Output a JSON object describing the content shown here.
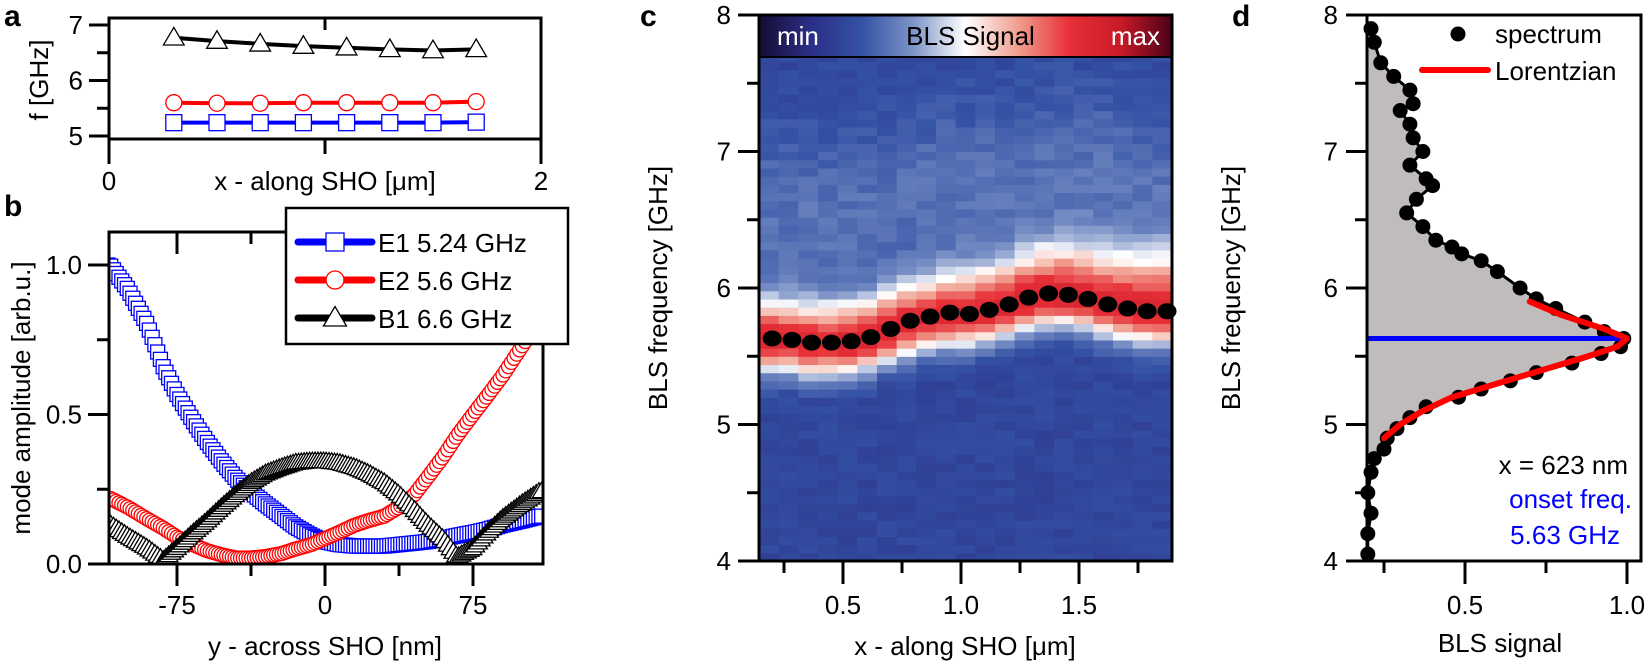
{
  "figure": {
    "panel_labels": {
      "a": "a",
      "b": "b",
      "c": "c",
      "d": "d"
    }
  },
  "chart_data": [
    {
      "panel": "a",
      "type": "line",
      "xlabel": "x - along SHO [μm]",
      "ylabel": "f [GHz]",
      "xlim": [
        0,
        2
      ],
      "ylim": [
        4.8,
        7.2
      ],
      "xtick_labels": [
        "0",
        "2"
      ],
      "ytick_labels": [
        "5",
        "6",
        "7"
      ],
      "x": [
        0.3,
        0.5,
        0.7,
        0.9,
        1.1,
        1.3,
        1.5,
        1.7
      ],
      "series": [
        {
          "marker": "triangle",
          "color": "#000000",
          "values": [
            6.77,
            6.71,
            6.66,
            6.62,
            6.59,
            6.56,
            6.54,
            6.56
          ]
        },
        {
          "marker": "circle",
          "color": "#ff0000",
          "values": [
            5.6,
            5.59,
            5.59,
            5.6,
            5.6,
            5.6,
            5.6,
            5.62
          ]
        },
        {
          "marker": "square",
          "color": "#0000ff",
          "values": [
            5.24,
            5.24,
            5.24,
            5.24,
            5.24,
            5.24,
            5.24,
            5.25
          ]
        }
      ]
    },
    {
      "panel": "b",
      "type": "line",
      "xlabel": "y - across SHO [nm]",
      "ylabel": "mode amplitude [arb.u.]",
      "xlim": [
        -110,
        110
      ],
      "ylim": [
        0,
        1.1
      ],
      "xtick_labels": [
        "-75",
        "0",
        "75"
      ],
      "ytick_labels": [
        "0.0",
        "0.5",
        "1.0"
      ],
      "legend": "top-right",
      "x": [
        -109,
        -100,
        -90,
        -82,
        -75,
        -67,
        -60,
        -52,
        -45,
        -37.5,
        -30,
        -22,
        -15,
        -7,
        0,
        7,
        15,
        22,
        30,
        37.5,
        45,
        52,
        60,
        67,
        75,
        82,
        90,
        100,
        109
      ],
      "series": [
        {
          "name": "E1 5.24 GHz",
          "marker": "square",
          "color": "#0000ff",
          "values": [
            1.0,
            0.92,
            0.8,
            0.66,
            0.567,
            0.48,
            0.41,
            0.34,
            0.285,
            0.24,
            0.2,
            0.16,
            0.125,
            0.095,
            0.075,
            0.065,
            0.06,
            0.06,
            0.06,
            0.065,
            0.07,
            0.075,
            0.085,
            0.095,
            0.105,
            0.115,
            0.13,
            0.145,
            0.16
          ]
        },
        {
          "name": "E2 5.6 GHz",
          "marker": "circle",
          "color": "#ff0000",
          "values": [
            0.22,
            0.19,
            0.15,
            0.12,
            0.09,
            0.065,
            0.045,
            0.03,
            0.02,
            0.02,
            0.025,
            0.035,
            0.05,
            0.065,
            0.085,
            0.105,
            0.13,
            0.145,
            0.16,
            0.19,
            0.23,
            0.29,
            0.36,
            0.43,
            0.5,
            0.56,
            0.63,
            0.73,
            0.82
          ]
        },
        {
          "name": "B1 6.6 GHz",
          "marker": "triangle",
          "color": "#000000",
          "values": [
            0.12,
            0.08,
            0.04,
            0.0,
            0.04,
            0.09,
            0.13,
            0.18,
            0.22,
            0.26,
            0.29,
            0.31,
            0.325,
            0.33,
            0.33,
            0.325,
            0.31,
            0.29,
            0.26,
            0.22,
            0.17,
            0.12,
            0.07,
            0.01,
            0.04,
            0.09,
            0.14,
            0.19,
            0.23
          ]
        }
      ]
    },
    {
      "panel": "c",
      "type": "heatmap",
      "xlabel": "x - along SHO [μm]",
      "ylabel": "BLS frequency [GHz]",
      "xlim": [
        0.15,
        1.88
      ],
      "ylim": [
        4,
        8
      ],
      "xtick_labels": [
        "0.5",
        "1.0",
        "1.5"
      ],
      "ytick_labels": [
        "4",
        "5",
        "6",
        "7",
        "8"
      ],
      "colorbar": {
        "min_label": "min",
        "title": "BLS Signal",
        "max_label": "max",
        "colors": [
          "#160c35",
          "#2b2f86",
          "#3452a5",
          "#7f95c8",
          "#ffffff",
          "#f0a090",
          "#e83038",
          "#c81a28",
          "#4a0018"
        ]
      },
      "peak_markers": {
        "color": "#000000",
        "x": [
          0.2,
          0.284,
          0.367,
          0.451,
          0.535,
          0.618,
          0.702,
          0.785,
          0.869,
          0.953,
          1.036,
          1.12,
          1.204,
          1.287,
          1.371,
          1.455,
          1.538,
          1.622,
          1.706,
          1.789,
          1.873
        ],
        "y": [
          5.63,
          5.62,
          5.6,
          5.6,
          5.61,
          5.64,
          5.7,
          5.76,
          5.79,
          5.82,
          5.81,
          5.84,
          5.88,
          5.93,
          5.96,
          5.95,
          5.92,
          5.88,
          5.85,
          5.83,
          5.83
        ]
      }
    },
    {
      "panel": "d",
      "type": "scatter",
      "xlabel": "BLS signal",
      "ylabel": "BLS frequency [GHz]",
      "xlim": [
        0.2,
        1.04
      ],
      "ylim": [
        4,
        8
      ],
      "xtick_labels": [
        "0.5",
        "1.0"
      ],
      "ytick_labels": [
        "4",
        "5",
        "6",
        "7",
        "8"
      ],
      "legend": "top-right",
      "spectrum": {
        "name": "spectrum",
        "color": "#000000",
        "fill": "#c0bcbc",
        "frequency": [
          7.9,
          7.8,
          7.65,
          7.55,
          7.45,
          7.35,
          7.3,
          7.2,
          7.1,
          7.0,
          6.9,
          6.8,
          6.75,
          6.65,
          6.55,
          6.45,
          6.35,
          6.3,
          6.25,
          6.2,
          6.12,
          6.0,
          5.92,
          5.85,
          5.75,
          5.68,
          5.63,
          5.57,
          5.52,
          5.45,
          5.38,
          5.32,
          5.26,
          5.2,
          5.13,
          5.05,
          4.97,
          4.9,
          4.82,
          4.75,
          4.65,
          4.5,
          4.35,
          4.2,
          4.05
        ],
        "signal": [
          0.21,
          0.22,
          0.24,
          0.28,
          0.33,
          0.34,
          0.3,
          0.33,
          0.34,
          0.37,
          0.33,
          0.38,
          0.4,
          0.35,
          0.32,
          0.37,
          0.41,
          0.46,
          0.49,
          0.55,
          0.6,
          0.67,
          0.72,
          0.78,
          0.87,
          0.93,
          0.99,
          0.98,
          0.92,
          0.83,
          0.72,
          0.64,
          0.55,
          0.48,
          0.38,
          0.33,
          0.29,
          0.26,
          0.25,
          0.22,
          0.21,
          0.2,
          0.21,
          0.2,
          0.2
        ]
      },
      "fit": {
        "name": "Lorentzian",
        "color": "#ff0000",
        "frequency": [
          4.9,
          5.0,
          5.1,
          5.2,
          5.3,
          5.4,
          5.5,
          5.57,
          5.63,
          5.7,
          5.8,
          5.9
        ],
        "signal": [
          0.25,
          0.3,
          0.37,
          0.46,
          0.6,
          0.74,
          0.88,
          0.97,
          1.0,
          0.93,
          0.8,
          0.7
        ]
      },
      "onset_line": {
        "frequency": 5.63,
        "color": "#0000ff"
      },
      "annotations": {
        "position": "x = 623 nm",
        "onset_label": "onset freq.",
        "onset_value": "5.63 GHz",
        "onset_color": "#0000ff"
      }
    }
  ]
}
